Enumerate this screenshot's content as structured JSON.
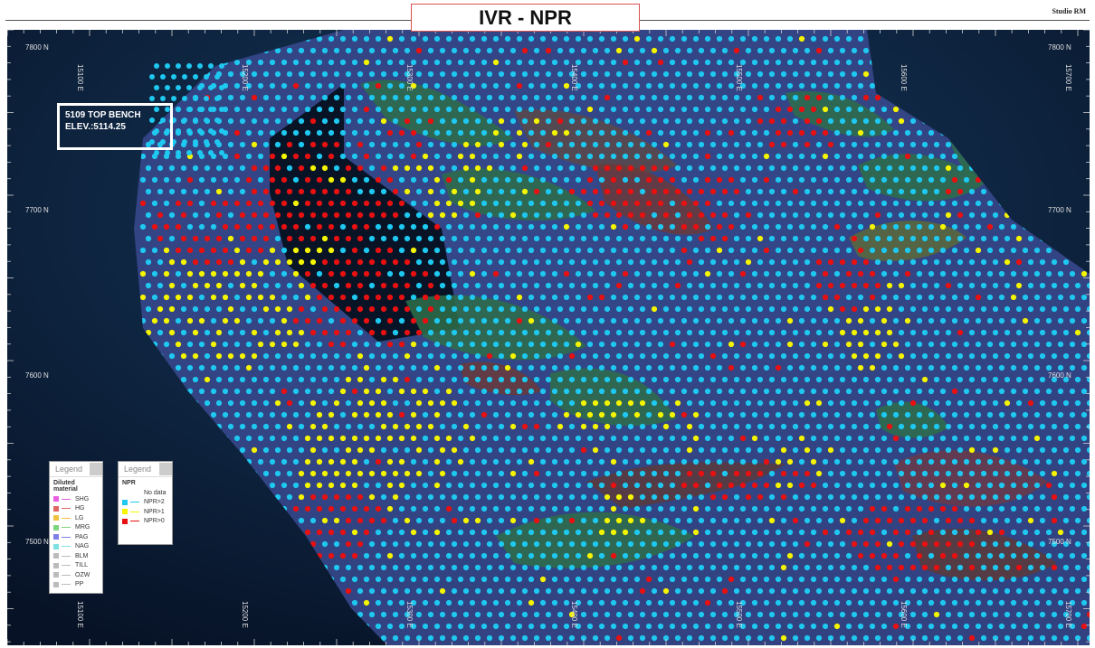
{
  "title": "IVR - NPR",
  "brand": "Studio RM",
  "bench": {
    "line1": "5109 TOP BENCH",
    "line2": "ELEV.:5114.25"
  },
  "axes": {
    "east_top": [
      "15100 E",
      "15200 E",
      "15300 E",
      "15400 E",
      "15500 E",
      "15600 E",
      "15700 E"
    ],
    "east_bottom": [
      "15100 E",
      "15200 E",
      "15300 E",
      "15400 E",
      "15500 E",
      "15600 E",
      "15700 E"
    ],
    "north_left": [
      "7800 N",
      "7700 N",
      "7600 N",
      "7500 N"
    ],
    "north_right": [
      "7800 N",
      "7700 N",
      "7600 N",
      "7500 N"
    ]
  },
  "legend_material": {
    "header": "Legend",
    "title": "Diluted material",
    "items": [
      {
        "label": "SHG",
        "color": "#e85fe0"
      },
      {
        "label": "HG",
        "color": "#e06666"
      },
      {
        "label": "LG",
        "color": "#f0c040"
      },
      {
        "label": "MRG",
        "color": "#7fd47f"
      },
      {
        "label": "PAG",
        "color": "#7f7fe8"
      },
      {
        "label": "NAG",
        "color": "#7fe0e0"
      },
      {
        "label": "BLM",
        "color": "#bbbbbb"
      },
      {
        "label": "TILL",
        "color": "#bbbbbb"
      },
      {
        "label": "OZW",
        "color": "#bbbbbb"
      },
      {
        "label": "PP",
        "color": "#bbbbbb"
      }
    ]
  },
  "legend_npr": {
    "header": "Legend",
    "title": "NPR",
    "items": [
      {
        "label": "No data",
        "color": "#ffffff"
      },
      {
        "label": "NPR>2",
        "color": "#1ec8f0"
      },
      {
        "label": "NPR>1",
        "color": "#f5f500"
      },
      {
        "label": "NPR>0",
        "color": "#e81010"
      }
    ]
  },
  "colors": {
    "background": "#0b1a30",
    "pit": "#3a4a90",
    "npr_gt2": "#1ec8f0",
    "npr_gt1": "#f5f500",
    "npr_gt0": "#e81010"
  }
}
